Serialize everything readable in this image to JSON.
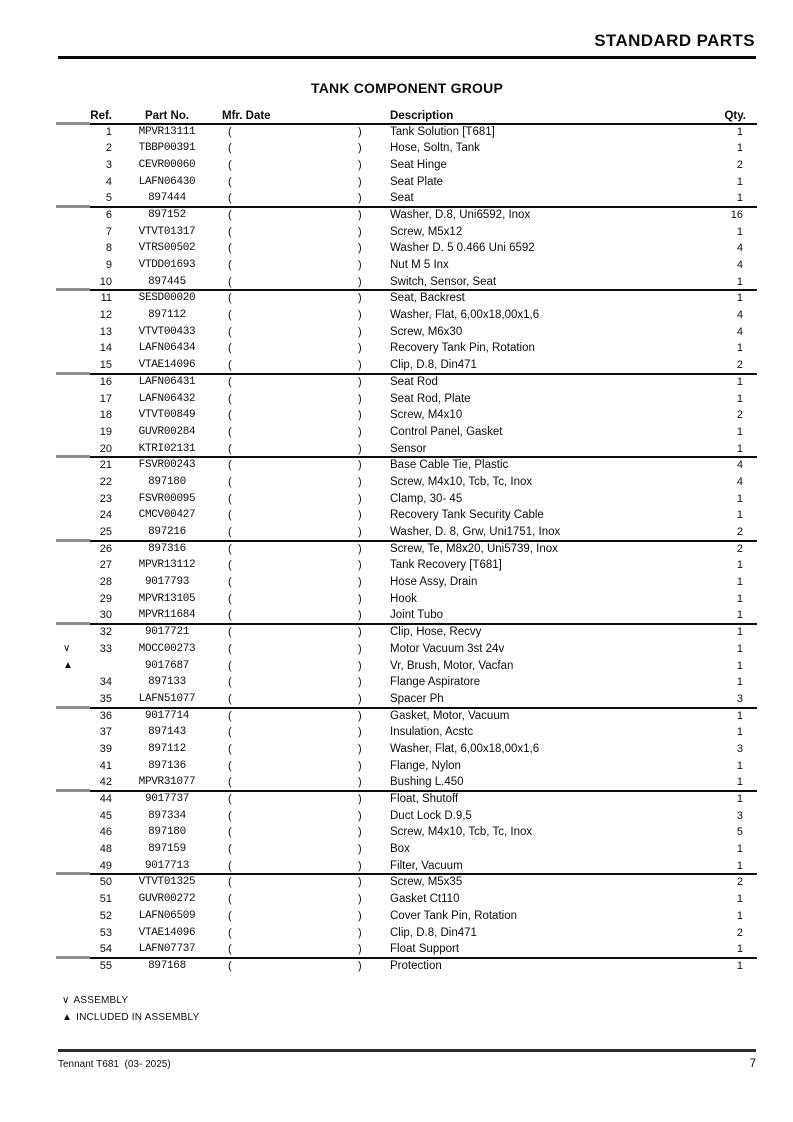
{
  "page": {
    "header_title": "STANDARD PARTS",
    "section_title": "TANK COMPONENT GROUP",
    "footer_left": "Tennant T681  (03- 2025)",
    "footer_page": "7"
  },
  "table": {
    "columns": {
      "ref": "Ref.",
      "part": "Part No.",
      "mfr_date": "Mfr. Date",
      "description": "Description",
      "qty": "Qty."
    },
    "mfr_date_open": "(",
    "mfr_date_close": ")",
    "groups": [
      {
        "rows": [
          {
            "marker": "",
            "ref": "1",
            "part": "MPVR13111",
            "description": "Tank Solution [T681]",
            "qty": "1"
          },
          {
            "marker": "",
            "ref": "2",
            "part": "TBBP00391",
            "description": "Hose, Soltn, Tank",
            "qty": "1"
          },
          {
            "marker": "",
            "ref": "3",
            "part": "CEVR00060",
            "description": "Seat Hinge",
            "qty": "2"
          },
          {
            "marker": "",
            "ref": "4",
            "part": "LAFN06430",
            "description": "Seat Plate",
            "qty": "1"
          },
          {
            "marker": "",
            "ref": "5",
            "part": "897444",
            "description": "Seat",
            "qty": "1"
          }
        ]
      },
      {
        "rows": [
          {
            "marker": "",
            "ref": "6",
            "part": "897152",
            "description": "Washer, D.8, Uni6592, Inox",
            "qty": "16"
          },
          {
            "marker": "",
            "ref": "7",
            "part": "VTVT01317",
            "description": "Screw, M5x12",
            "qty": "1"
          },
          {
            "marker": "",
            "ref": "8",
            "part": "VTRS00502",
            "description": "Washer D. 5 0.466 Uni 6592",
            "qty": "4"
          },
          {
            "marker": "",
            "ref": "9",
            "part": "VTDD01693",
            "description": "Nut M 5 Inx",
            "qty": "4"
          },
          {
            "marker": "",
            "ref": "10",
            "part": "897445",
            "description": "Switch, Sensor, Seat",
            "qty": "1"
          }
        ]
      },
      {
        "rows": [
          {
            "marker": "",
            "ref": "11",
            "part": "SESD00020",
            "description": "Seat, Backrest",
            "qty": "1"
          },
          {
            "marker": "",
            "ref": "12",
            "part": "897112",
            "description": "Washer, Flat, 6,00x18,00x1,6",
            "qty": "4"
          },
          {
            "marker": "",
            "ref": "13",
            "part": "VTVT00433",
            "description": "Screw, M6x30",
            "qty": "4"
          },
          {
            "marker": "",
            "ref": "14",
            "part": "LAFN06434",
            "description": "Recovery Tank Pin, Rotation",
            "qty": "1"
          },
          {
            "marker": "",
            "ref": "15",
            "part": "VTAE14096",
            "description": "Clip, D.8, Din471",
            "qty": "2"
          }
        ]
      },
      {
        "rows": [
          {
            "marker": "",
            "ref": "16",
            "part": "LAFN06431",
            "description": "Seat Rod",
            "qty": "1"
          },
          {
            "marker": "",
            "ref": "17",
            "part": "LAFN06432",
            "description": "Seat Rod, Plate",
            "qty": "1"
          },
          {
            "marker": "",
            "ref": "18",
            "part": "VTVT00849",
            "description": "Screw, M4x10",
            "qty": "2"
          },
          {
            "marker": "",
            "ref": "19",
            "part": "GUVR00284",
            "description": "Control Panel, Gasket",
            "qty": "1"
          },
          {
            "marker": "",
            "ref": "20",
            "part": "KTRI02131",
            "description": "Sensor",
            "qty": "1"
          }
        ]
      },
      {
        "rows": [
          {
            "marker": "",
            "ref": "21",
            "part": "FSVR00243",
            "description": "Base Cable Tie, Plastic",
            "qty": "4"
          },
          {
            "marker": "",
            "ref": "22",
            "part": "897180",
            "description": "Screw, M4x10, Tcb, Tc, Inox",
            "qty": "4"
          },
          {
            "marker": "",
            "ref": "23",
            "part": "FSVR00095",
            "description": "Clamp, 30- 45",
            "qty": "1"
          },
          {
            "marker": "",
            "ref": "24",
            "part": "CMCV00427",
            "description": "Recovery Tank Security Cable",
            "qty": "1"
          },
          {
            "marker": "",
            "ref": "25",
            "part": "897216",
            "description": "Washer, D. 8, Grw, Uni1751, Inox",
            "qty": "2"
          }
        ]
      },
      {
        "rows": [
          {
            "marker": "",
            "ref": "26",
            "part": "897316",
            "description": "Screw, Te, M8x20, Uni5739, Inox",
            "qty": "2"
          },
          {
            "marker": "",
            "ref": "27",
            "part": "MPVR13112",
            "description": "Tank Recovery [T681]",
            "qty": "1"
          },
          {
            "marker": "",
            "ref": "28",
            "part": "9017793",
            "description": "Hose Assy, Drain",
            "qty": "1"
          },
          {
            "marker": "",
            "ref": "29",
            "part": "MPVR13105",
            "description": "Hook",
            "qty": "1"
          },
          {
            "marker": "",
            "ref": "30",
            "part": "MPVR11684",
            "description": "Joint Tubo",
            "qty": "1"
          }
        ]
      },
      {
        "rows": [
          {
            "marker": "",
            "ref": "32",
            "part": "9017721",
            "description": "Clip, Hose, Recvy",
            "qty": "1"
          },
          {
            "marker": "∨",
            "ref": "33",
            "part": "MOCC00273",
            "description": "Motor Vacuum 3st 24v",
            "qty": "1"
          },
          {
            "marker": "▲",
            "ref": "",
            "part": "9017687",
            "description": "Vr, Brush, Motor, Vacfan",
            "qty": "1"
          },
          {
            "marker": "",
            "ref": "34",
            "part": "897133",
            "description": "Flange Aspiratore",
            "qty": "1"
          },
          {
            "marker": "",
            "ref": "35",
            "part": "LAFN51077",
            "description": "Spacer Ph",
            "qty": "3"
          }
        ]
      },
      {
        "rows": [
          {
            "marker": "",
            "ref": "36",
            "part": "9017714",
            "description": "Gasket, Motor, Vacuum",
            "qty": "1"
          },
          {
            "marker": "",
            "ref": "37",
            "part": "897143",
            "description": "Insulation, Acstc",
            "qty": "1"
          },
          {
            "marker": "",
            "ref": "39",
            "part": "897112",
            "description": "Washer, Flat, 6,00x18,00x1,6",
            "qty": "3"
          },
          {
            "marker": "",
            "ref": "41",
            "part": "897136",
            "description": "Flange, Nylon",
            "qty": "1"
          },
          {
            "marker": "",
            "ref": "42",
            "part": "MPVR31077",
            "description": "Bushing L.450",
            "qty": "1"
          }
        ]
      },
      {
        "rows": [
          {
            "marker": "",
            "ref": "44",
            "part": "9017737",
            "description": "Float, Shutoff",
            "qty": "1"
          },
          {
            "marker": "",
            "ref": "45",
            "part": "897334",
            "description": "Duct Lock D.9,5",
            "qty": "3"
          },
          {
            "marker": "",
            "ref": "46",
            "part": "897180",
            "description": "Screw, M4x10, Tcb, Tc, Inox",
            "qty": "5"
          },
          {
            "marker": "",
            "ref": "48",
            "part": "897159",
            "description": "Box",
            "qty": "1"
          },
          {
            "marker": "",
            "ref": "49",
            "part": "9017713",
            "description": "Filter, Vacuum",
            "qty": "1"
          }
        ]
      },
      {
        "rows": [
          {
            "marker": "",
            "ref": "50",
            "part": "VTVT01325",
            "description": "Screw, M5x35",
            "qty": "2"
          },
          {
            "marker": "",
            "ref": "51",
            "part": "GUVR00272",
            "description": "Gasket Ct110",
            "qty": "1"
          },
          {
            "marker": "",
            "ref": "52",
            "part": "LAFN06509",
            "description": "Cover Tank Pin, Rotation",
            "qty": "1"
          },
          {
            "marker": "",
            "ref": "53",
            "part": "VTAE14096",
            "description": "Clip, D.8, Din471",
            "qty": "2"
          },
          {
            "marker": "",
            "ref": "54",
            "part": "LAFN07737",
            "description": "Float Support",
            "qty": "1"
          }
        ]
      },
      {
        "rows": [
          {
            "marker": "",
            "ref": "55",
            "part": "897168",
            "description": "Protection",
            "qty": "1"
          }
        ]
      }
    ]
  },
  "legend": {
    "items": [
      {
        "symbol": "∨",
        "label": "ASSEMBLY"
      },
      {
        "symbol": "▲",
        "label": "INCLUDED IN ASSEMBLY"
      }
    ]
  }
}
